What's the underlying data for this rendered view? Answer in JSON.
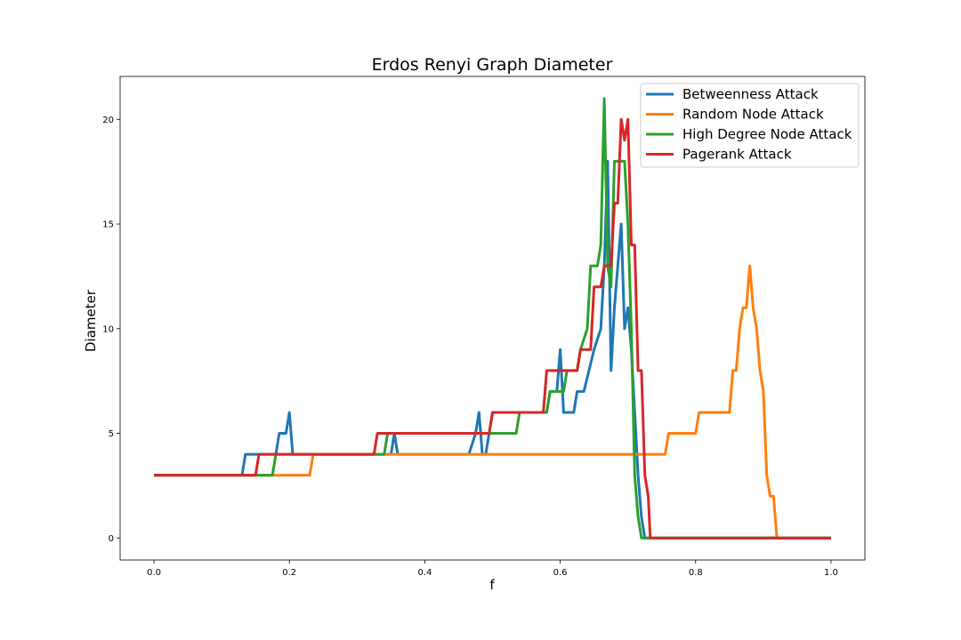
{
  "chart_data": {
    "type": "line",
    "title": "Erdos Renyi Graph Diameter",
    "xlabel": "f",
    "ylabel": "Diameter",
    "xlim": [
      -0.05,
      1.05
    ],
    "ylim": [
      -1.05,
      22.05
    ],
    "xticks": [
      0.0,
      0.2,
      0.4,
      0.6,
      0.8,
      1.0
    ],
    "xtick_labels": [
      "0.0",
      "0.2",
      "0.4",
      "0.6",
      "0.8",
      "1.0"
    ],
    "yticks": [
      0,
      5,
      10,
      15,
      20
    ],
    "ytick_labels": [
      "0",
      "5",
      "10",
      "15",
      "20"
    ],
    "grid": false,
    "legend_position": "top-right",
    "series": [
      {
        "name": "Betweenness Attack",
        "color": "#1f77b4",
        "points": [
          [
            0,
            3
          ],
          [
            0.13,
            3
          ],
          [
            0.135,
            4
          ],
          [
            0.18,
            4
          ],
          [
            0.185,
            5
          ],
          [
            0.195,
            5
          ],
          [
            0.2,
            6
          ],
          [
            0.205,
            4
          ],
          [
            0.35,
            4
          ],
          [
            0.355,
            5
          ],
          [
            0.36,
            4
          ],
          [
            0.465,
            4
          ],
          [
            0.475,
            5
          ],
          [
            0.48,
            6
          ],
          [
            0.485,
            4
          ],
          [
            0.49,
            4
          ],
          [
            0.495,
            5
          ],
          [
            0.5,
            6
          ],
          [
            0.58,
            6
          ],
          [
            0.585,
            7
          ],
          [
            0.595,
            7
          ],
          [
            0.6,
            9
          ],
          [
            0.605,
            6
          ],
          [
            0.62,
            6
          ],
          [
            0.625,
            7
          ],
          [
            0.635,
            7
          ],
          [
            0.65,
            9
          ],
          [
            0.66,
            10
          ],
          [
            0.665,
            13
          ],
          [
            0.67,
            18
          ],
          [
            0.675,
            8
          ],
          [
            0.68,
            11
          ],
          [
            0.69,
            15
          ],
          [
            0.695,
            10
          ],
          [
            0.7,
            11
          ],
          [
            0.705,
            9
          ],
          [
            0.715,
            3
          ],
          [
            0.72,
            1
          ],
          [
            0.725,
            0
          ],
          [
            1.0,
            0
          ]
        ]
      },
      {
        "name": "Random Node Attack",
        "color": "#ff7f0e",
        "points": [
          [
            0,
            3
          ],
          [
            0.23,
            3
          ],
          [
            0.235,
            4
          ],
          [
            0.755,
            4
          ],
          [
            0.76,
            5
          ],
          [
            0.8,
            5
          ],
          [
            0.805,
            6
          ],
          [
            0.85,
            6
          ],
          [
            0.855,
            8
          ],
          [
            0.86,
            8
          ],
          [
            0.865,
            10
          ],
          [
            0.87,
            11
          ],
          [
            0.875,
            11
          ],
          [
            0.88,
            13
          ],
          [
            0.885,
            11
          ],
          [
            0.89,
            10
          ],
          [
            0.895,
            8
          ],
          [
            0.9,
            7
          ],
          [
            0.905,
            3
          ],
          [
            0.91,
            2
          ],
          [
            0.915,
            2
          ],
          [
            0.92,
            0
          ],
          [
            1.0,
            0
          ]
        ]
      },
      {
        "name": "High Degree Node Attack",
        "color": "#2ca02c",
        "points": [
          [
            0,
            3
          ],
          [
            0.15,
            3
          ],
          [
            0.155,
            3
          ],
          [
            0.175,
            3
          ],
          [
            0.18,
            4
          ],
          [
            0.34,
            4
          ],
          [
            0.345,
            5
          ],
          [
            0.535,
            5
          ],
          [
            0.54,
            6
          ],
          [
            0.58,
            6
          ],
          [
            0.585,
            7
          ],
          [
            0.605,
            7
          ],
          [
            0.61,
            8
          ],
          [
            0.625,
            8
          ],
          [
            0.63,
            9
          ],
          [
            0.64,
            10
          ],
          [
            0.645,
            13
          ],
          [
            0.655,
            13
          ],
          [
            0.66,
            14
          ],
          [
            0.665,
            21
          ],
          [
            0.67,
            13
          ],
          [
            0.675,
            12
          ],
          [
            0.68,
            18
          ],
          [
            0.695,
            18
          ],
          [
            0.7,
            15
          ],
          [
            0.705,
            10
          ],
          [
            0.71,
            3
          ],
          [
            0.715,
            1
          ],
          [
            0.72,
            0
          ],
          [
            1.0,
            0
          ]
        ]
      },
      {
        "name": "Pagerank Attack",
        "color": "#d62728",
        "points": [
          [
            0,
            3
          ],
          [
            0.15,
            3
          ],
          [
            0.155,
            4
          ],
          [
            0.325,
            4
          ],
          [
            0.33,
            5
          ],
          [
            0.495,
            5
          ],
          [
            0.5,
            6
          ],
          [
            0.575,
            6
          ],
          [
            0.58,
            8
          ],
          [
            0.625,
            8
          ],
          [
            0.63,
            9
          ],
          [
            0.645,
            9
          ],
          [
            0.65,
            12
          ],
          [
            0.66,
            12
          ],
          [
            0.665,
            13
          ],
          [
            0.675,
            13
          ],
          [
            0.68,
            16
          ],
          [
            0.685,
            16
          ],
          [
            0.69,
            20
          ],
          [
            0.695,
            19
          ],
          [
            0.7,
            20
          ],
          [
            0.705,
            14
          ],
          [
            0.71,
            14
          ],
          [
            0.715,
            8
          ],
          [
            0.72,
            8
          ],
          [
            0.725,
            3
          ],
          [
            0.73,
            2
          ],
          [
            0.733,
            0
          ],
          [
            1.0,
            0
          ]
        ]
      }
    ]
  }
}
